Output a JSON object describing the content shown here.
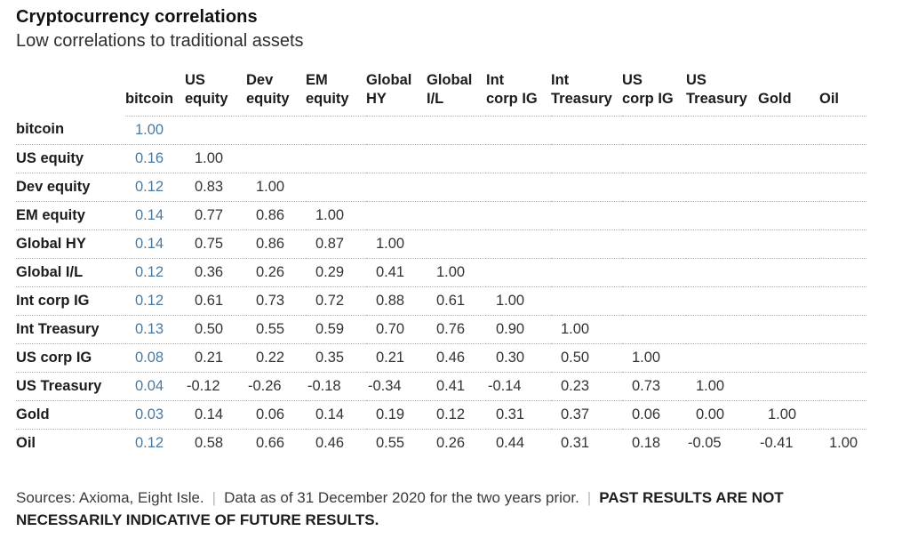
{
  "header": {
    "title": "Cryptocurrency correlations",
    "subtitle": "Low correlations to traditional assets"
  },
  "chart_data": {
    "type": "table",
    "title": "Cryptocurrency correlations",
    "subtitle": "Low correlations to traditional assets",
    "description": "Lower-triangular correlation matrix; bitcoin column values highlighted in blue",
    "column_headers": [
      "bitcoin",
      "US\nequity",
      "Dev\nequity",
      "EM\nequity",
      "Global\nHY",
      "Global\nI/L",
      "Int\ncorp IG",
      "Int\nTreasury",
      "US\ncorp IG",
      "US\nTreasury",
      "Gold",
      "Oil"
    ],
    "rows": [
      {
        "label": "bitcoin",
        "values": [
          "1.00"
        ]
      },
      {
        "label": "US equity",
        "values": [
          "0.16",
          "1.00"
        ]
      },
      {
        "label": "Dev equity",
        "values": [
          "0.12",
          "0.83",
          "1.00"
        ]
      },
      {
        "label": "EM equity",
        "values": [
          "0.14",
          "0.77",
          "0.86",
          "1.00"
        ]
      },
      {
        "label": "Global HY",
        "values": [
          "0.14",
          "0.75",
          "0.86",
          "0.87",
          "1.00"
        ]
      },
      {
        "label": "Global I/L",
        "values": [
          "0.12",
          "0.36",
          "0.26",
          "0.29",
          "0.41",
          "1.00"
        ]
      },
      {
        "label": "Int corp IG",
        "values": [
          "0.12",
          "0.61",
          "0.73",
          "0.72",
          "0.88",
          "0.61",
          "1.00"
        ]
      },
      {
        "label": "Int Treasury",
        "values": [
          "0.13",
          "0.50",
          "0.55",
          "0.59",
          "0.70",
          "0.76",
          "0.90",
          "1.00"
        ]
      },
      {
        "label": "US corp IG",
        "values": [
          "0.08",
          "0.21",
          "0.22",
          "0.35",
          "0.21",
          "0.46",
          "0.30",
          "0.50",
          "1.00"
        ]
      },
      {
        "label": "US Treasury",
        "values": [
          "0.04",
          "-0.12",
          "-0.26",
          "-0.18",
          "-0.34",
          "0.41",
          "-0.14",
          "0.23",
          "0.73",
          "1.00"
        ]
      },
      {
        "label": "Gold",
        "values": [
          "0.03",
          "0.14",
          "0.06",
          "0.14",
          "0.19",
          "0.12",
          "0.31",
          "0.37",
          "0.06",
          "0.00",
          "1.00"
        ]
      },
      {
        "label": "Oil",
        "values": [
          "0.12",
          "0.58",
          "0.66",
          "0.46",
          "0.55",
          "0.26",
          "0.44",
          "0.31",
          "0.18",
          "-0.05",
          "-0.41",
          "1.00"
        ]
      }
    ],
    "highlight_column": "bitcoin",
    "highlight_color": "#4A7AA0"
  },
  "footer": {
    "sources": "Sources: Axioma, Eight Isle.",
    "separator": "|",
    "data_note": "Data as of 31 December 2020 for the two years prior.",
    "disclaimer": "PAST RESULTS ARE NOT NECESSARILY INDICATIVE OF FUTURE RESULTS."
  }
}
